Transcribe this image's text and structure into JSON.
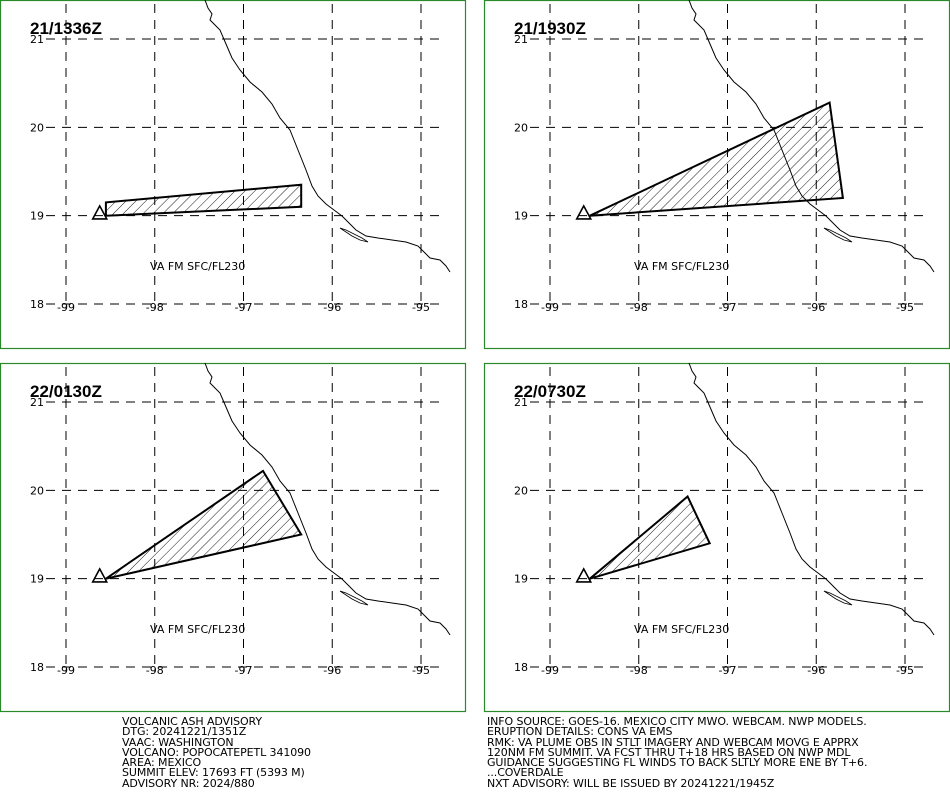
{
  "panels": [
    {
      "title": "21/1336Z",
      "label": "VA FM SFC/FL230",
      "plume": [
        [
          -98.55,
          19.0
        ],
        [
          -98.55,
          19.15
        ],
        [
          -96.35,
          19.35
        ],
        [
          -96.35,
          19.1
        ]
      ]
    },
    {
      "title": "21/1930Z",
      "label": "VA FM SFC/FL230",
      "plume": [
        [
          -98.55,
          19.0
        ],
        [
          -95.85,
          20.28
        ],
        [
          -95.7,
          19.2
        ]
      ]
    },
    {
      "title": "22/0130Z",
      "label": "VA FM SFC/FL230",
      "plume": [
        [
          -98.55,
          19.0
        ],
        [
          -96.78,
          20.22
        ],
        [
          -96.35,
          19.5
        ]
      ]
    },
    {
      "title": "22/0730Z",
      "label": "VA FM SFC/FL230",
      "plume": [
        [
          -98.55,
          19.0
        ],
        [
          -97.45,
          19.93
        ],
        [
          -97.2,
          19.4
        ]
      ]
    }
  ],
  "map": {
    "lat_ticks": [
      "21",
      "20",
      "19",
      "18"
    ],
    "lon_ticks": [
      "-99",
      "-98",
      "-97",
      "-96",
      "-95"
    ],
    "volcano": {
      "name": "POPOCATEPETL",
      "lat": 19.02,
      "lon": -98.62
    }
  },
  "advisory_left": [
    "VOLCANIC ASH ADVISORY",
    "DTG: 20241221/1351Z",
    "VAAC: WASHINGTON",
    "VOLCANO: POPOCATEPETL 341090",
    "AREA: MEXICO",
    "SUMMIT ELEV: 17693 FT (5393 M)",
    "ADVISORY NR: 2024/880"
  ],
  "advisory_right": [
    "INFO SOURCE: GOES-16. MEXICO CITY MWO. WEBCAM. NWP MODELS.",
    "ERUPTION DETAILS: CONS VA EMS",
    "RMK: VA PLUME OBS IN STLT IMAGERY AND WEBCAM MOVG E APPRX",
    "120NM FM SUMMIT. VA FCST THRU T+18 HRS BASED ON NWP MDL",
    "GUIDANCE SUGGESTING FL WINDS TO BACK SLTLY MORE ENE BY T+6.",
    "...COVERDALE",
    "NXT ADVISORY: WILL BE ISSUED BY 20241221/1945Z"
  ]
}
